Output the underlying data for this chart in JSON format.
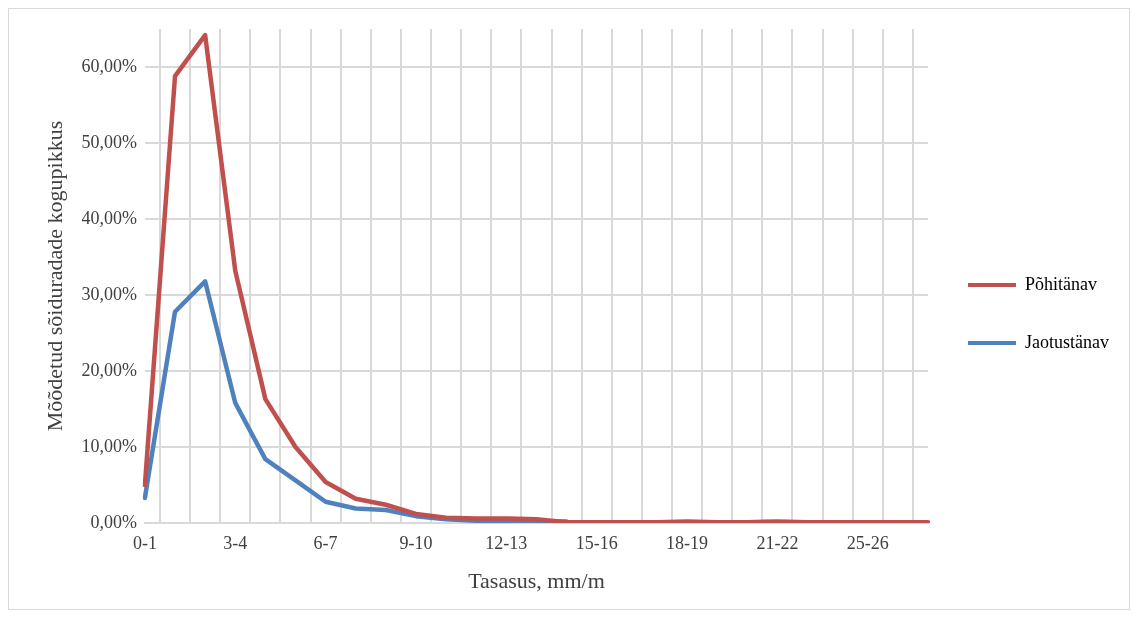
{
  "chart_data": {
    "type": "line",
    "xlabel": "Tasasus, mm/m",
    "ylabel": "Mõõdetud sõiduradade kogupikkus",
    "categories": [
      "0-1",
      null,
      null,
      "3-4",
      null,
      null,
      "6-7",
      null,
      null,
      "9-10",
      null,
      null,
      "12-13",
      null,
      null,
      "15-16",
      null,
      null,
      "18-19",
      null,
      null,
      "21-22",
      null,
      null,
      "25-26",
      null,
      null
    ],
    "series": [
      {
        "name": "Põhitänav",
        "color": "#c0504d",
        "values": [
          5.0,
          58.8,
          64.2,
          33.2,
          16.3,
          10.0,
          5.4,
          3.2,
          2.4,
          1.2,
          0.7,
          0.6,
          0.6,
          0.5,
          0.1,
          0.1,
          0.1,
          0.1,
          0.2,
          0.1,
          0.1,
          0.2,
          0.1,
          0.1,
          0.1,
          0.1,
          0.1
        ]
      },
      {
        "name": "Jaotustänav",
        "color": "#4f81bd",
        "values": [
          3.3,
          27.8,
          31.8,
          15.8,
          8.4,
          5.6,
          2.8,
          1.9,
          1.7,
          0.9,
          0.5,
          0.3,
          0.2,
          0.2,
          0.2,
          null,
          null,
          null,
          null,
          null,
          null,
          null,
          null,
          null,
          null,
          null,
          null
        ]
      }
    ],
    "ylim": [
      0,
      65
    ],
    "yticks": [
      {
        "value": 0,
        "label": "0,00%"
      },
      {
        "value": 10,
        "label": "10,00%"
      },
      {
        "value": 20,
        "label": "20,00%"
      },
      {
        "value": 30,
        "label": "30,00%"
      },
      {
        "value": 40,
        "label": "40,00%"
      },
      {
        "value": 50,
        "label": "50,00%"
      },
      {
        "value": 60,
        "label": "60,00%"
      }
    ],
    "grid": true,
    "legend": "right",
    "marker": "none",
    "line_style": "solid"
  }
}
